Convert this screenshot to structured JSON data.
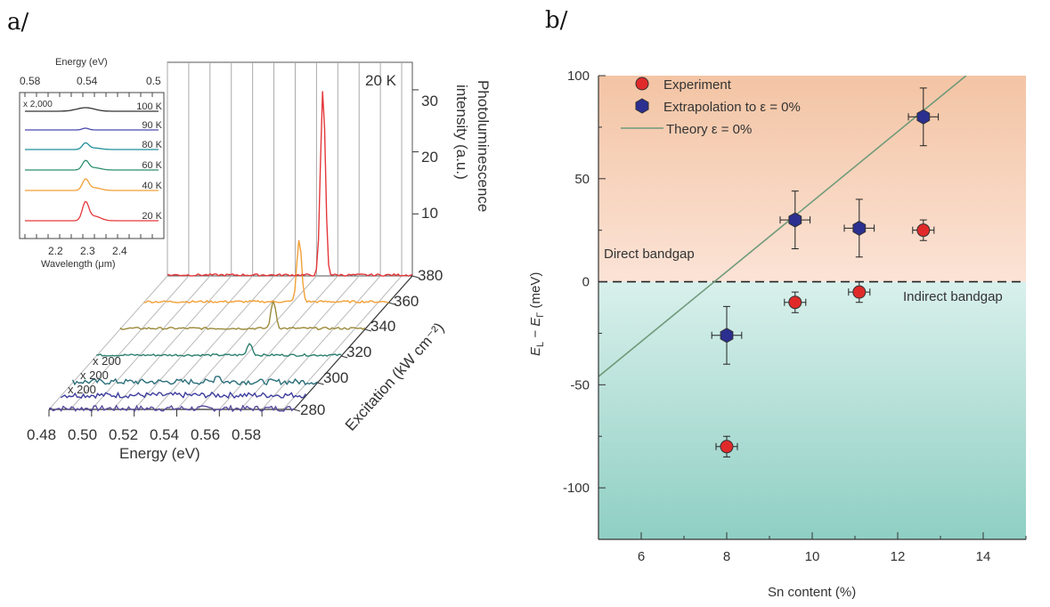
{
  "panel_labels": {
    "a": "a/",
    "b": "b/"
  },
  "chart_data": [
    {
      "type": "line",
      "panel": "a",
      "title": "",
      "temperature_label": "20 K",
      "xlabel": "Energy (eV)",
      "x_ticks": [
        "0.48",
        "0.50",
        "0.52",
        "0.54",
        "0.56",
        "0.58"
      ],
      "ylabel": "Excitation (kW cm⁻²)",
      "y_ticks": [
        "280",
        "300",
        "320",
        "340",
        "360",
        "380"
      ],
      "zlabel_line1": "Photoluminescence",
      "zlabel_line2": "intensity (a.u.)",
      "z_ticks": [
        "10",
        "20",
        "30"
      ],
      "series": [
        {
          "excitation": 280,
          "peak_energy": null,
          "peak_height": 0.3,
          "color": "#5b4a9e",
          "multiplier": "x 200"
        },
        {
          "excitation": 290,
          "peak_energy": null,
          "peak_height": 0.3,
          "color": "#3d3d9e",
          "multiplier": "x 200"
        },
        {
          "excitation": 300,
          "peak_energy": 0.548,
          "peak_height": 1.2,
          "color": "#2a6f7a",
          "multiplier": "x 200"
        },
        {
          "excitation": 320,
          "peak_energy": 0.552,
          "peak_height": 2.0,
          "color": "#2b7f6e",
          "multiplier": ""
        },
        {
          "excitation": 340,
          "peak_energy": 0.552,
          "peak_height": 4.5,
          "color": "#9a8a3a",
          "multiplier": ""
        },
        {
          "excitation": 360,
          "peak_energy": 0.553,
          "peak_height": 10,
          "color": "#f2a037",
          "multiplier": ""
        },
        {
          "excitation": 380,
          "peak_energy": 0.553,
          "peak_height": 30,
          "color": "#e5383b",
          "multiplier": ""
        }
      ],
      "inset": {
        "top_axis_label": "Energy (eV)",
        "top_ticks": [
          "0.58",
          "0.54",
          "0.5"
        ],
        "bottom_axis_label": "Wavelength (μm)",
        "bottom_ticks": [
          "2.2",
          "2.3",
          "2.4"
        ],
        "multiplier_label": "x 2,000",
        "traces": [
          {
            "label": "100 K",
            "color": "#333333"
          },
          {
            "label": "90 K",
            "color": "#4b4ab0"
          },
          {
            "label": "80 K",
            "color": "#1f8f9a"
          },
          {
            "label": "60 K",
            "color": "#2b8f6e"
          },
          {
            "label": "40 K",
            "color": "#f2a037"
          },
          {
            "label": "20 K",
            "color": "#e5383b"
          }
        ]
      }
    },
    {
      "type": "scatter",
      "panel": "b",
      "title": "",
      "xlabel": "Sn content (%)",
      "ylabel": "Eₗ − EΓ (meV)",
      "ylabel_main": "E",
      "ylabel_sub1": "L",
      "ylabel_minus": " − E",
      "ylabel_sub2": "Γ",
      "ylabel_unit": " (meV)",
      "xlim": [
        5,
        15
      ],
      "ylim": [
        -125,
        100
      ],
      "x_ticks": [
        6,
        8,
        10,
        12,
        14
      ],
      "y_ticks": [
        -100,
        -50,
        0,
        50,
        100
      ],
      "legend_placement": "top-left",
      "legend": [
        {
          "label": "Experiment",
          "color": "#e02a2a",
          "marker": "circle"
        },
        {
          "label": "Extrapolation to ε = 0%",
          "color": "#2b2f8f",
          "marker": "hexagon"
        },
        {
          "label": "Theory ε = 0%",
          "color": "#6f9a7a",
          "marker": "line"
        }
      ],
      "regions": {
        "direct_label": "Direct bandgap",
        "indirect_label": "Indirect bandgap",
        "top_color": "#f6c9ad",
        "bottom_color": "#9fd6cc"
      },
      "series": [
        {
          "name": "Experiment",
          "color": "#e02a2a",
          "points": [
            {
              "x": 8.0,
              "y": -80,
              "xerr": 0.25,
              "yerr": 5
            },
            {
              "x": 9.6,
              "y": -10,
              "xerr": 0.25,
              "yerr": 5
            },
            {
              "x": 11.1,
              "y": -5,
              "xerr": 0.25,
              "yerr": 5
            },
            {
              "x": 12.6,
              "y": 25,
              "xerr": 0.25,
              "yerr": 5
            }
          ]
        },
        {
          "name": "Extrapolation to ε = 0%",
          "color": "#2b2f8f",
          "points": [
            {
              "x": 8.0,
              "y": -26,
              "xerr": 0.35,
              "yerr": 14
            },
            {
              "x": 9.6,
              "y": 30,
              "xerr": 0.35,
              "yerr": 14
            },
            {
              "x": 11.1,
              "y": 26,
              "xerr": 0.35,
              "yerr": 14
            },
            {
              "x": 12.6,
              "y": 80,
              "xerr": 0.35,
              "yerr": 14
            }
          ]
        }
      ],
      "theory_line": {
        "name": "Theory ε = 0%",
        "x": [
          5,
          13.6
        ],
        "y": [
          -46,
          100
        ]
      }
    }
  ]
}
